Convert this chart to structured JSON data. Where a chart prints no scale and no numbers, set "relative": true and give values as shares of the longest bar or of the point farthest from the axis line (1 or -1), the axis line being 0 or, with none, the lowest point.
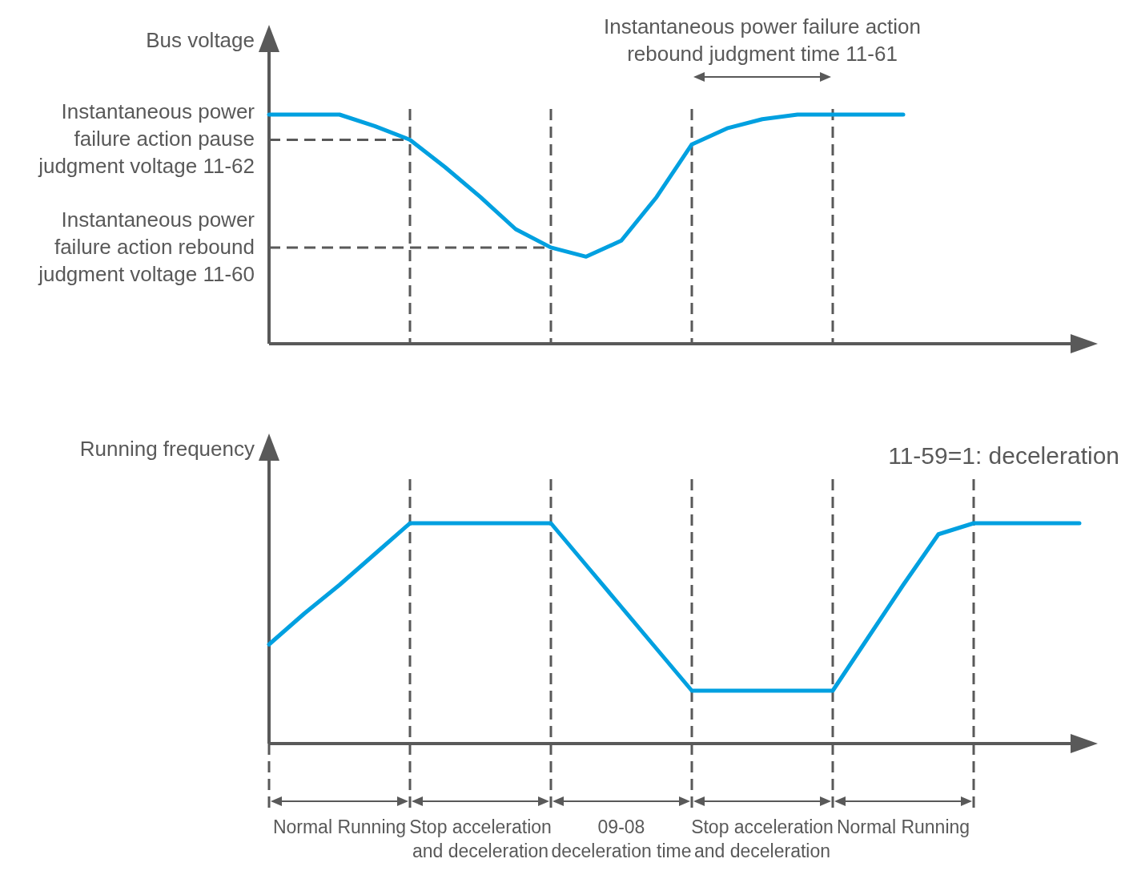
{
  "chart_data": [
    {
      "type": "line",
      "relative": true,
      "ylabel": "Bus voltage",
      "grid": "x",
      "tick_labels": false,
      "categories": [
        null,
        null,
        null,
        null,
        null,
        null,
        null,
        null,
        null,
        null,
        null,
        null,
        null,
        null,
        null,
        null,
        null,
        null,
        null,
        null,
        null,
        null,
        null,
        null
      ],
      "series": [
        {
          "color": "#00a0e0",
          "values": [
            1,
            1,
            1,
            0.95,
            0.89,
            0.77,
            0.64,
            0.5,
            0.42,
            0.38,
            0.45,
            0.64,
            0.87,
            0.94,
            0.98,
            1,
            1,
            1,
            1,
            null,
            null,
            null,
            null,
            null
          ]
        }
      ],
      "ref_lines": [
        {
          "axis": "y",
          "value": 0.89,
          "label": "Instantaneous power failure action pause judgment voltage 11-62",
          "line_style": "dashed"
        },
        {
          "axis": "y",
          "value": 0.42,
          "label": "Instantaneous power failure action rebound judgment voltage 11-60",
          "line_style": "dashed"
        }
      ],
      "annotations": [
        "Instantaneous power failure action rebound judgment time 11-61"
      ]
    },
    {
      "type": "line",
      "relative": true,
      "ylabel": "Running frequency",
      "grid": "x",
      "categories": [
        null,
        null,
        "Normal Running",
        null,
        null,
        null,
        "Stop acceleration and deceleration",
        null,
        null,
        null,
        "09-08 deceleration time",
        null,
        null,
        null,
        "Stop acceleration and deceleration",
        null,
        null,
        null,
        "Normal Running",
        null,
        null,
        null,
        null,
        null
      ],
      "series": [
        {
          "color": "#00a0e0",
          "values": [
            0.45,
            0.59,
            0.72,
            0.86,
            1,
            1,
            1,
            1,
            1,
            0.81,
            0.62,
            0.43,
            0.24,
            0.24,
            0.24,
            0.24,
            0.24,
            0.48,
            0.72,
            0.95,
            1,
            1,
            1,
            1
          ]
        }
      ],
      "annotations": [
        "11-59=1: deceleration"
      ]
    }
  ]
}
